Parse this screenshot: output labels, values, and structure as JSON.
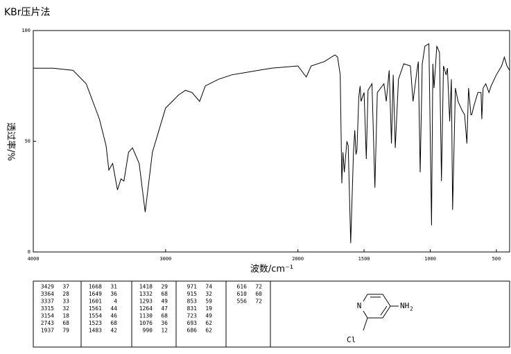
{
  "chart_data": {
    "type": "line",
    "title": "KBr压片法",
    "x_label": "波数/cm⁻¹",
    "y_label": "透过率/%",
    "xlim": [
      4000,
      400
    ],
    "xticks": [
      4000,
      3000,
      2000,
      1500,
      1000,
      500
    ],
    "ylim": [
      0,
      100
    ],
    "yticks": [
      0,
      50,
      100
    ],
    "color": "#000000",
    "x": [
      4000,
      3850,
      3700,
      3600,
      3500,
      3450,
      3429,
      3400,
      3364,
      3337,
      3315,
      3280,
      3250,
      3200,
      3154,
      3100,
      3000,
      2950,
      2900,
      2850,
      2800,
      2743,
      2700,
      2600,
      2500,
      2400,
      2200,
      2000,
      1937,
      1900,
      1800,
      1720,
      1700,
      1680,
      1668,
      1660,
      1649,
      1630,
      1620,
      1601,
      1580,
      1570,
      1561,
      1554,
      1540,
      1530,
      1523,
      1500,
      1483,
      1470,
      1440,
      1418,
      1400,
      1350,
      1332,
      1310,
      1293,
      1280,
      1264,
      1240,
      1200,
      1150,
      1130,
      1100,
      1090,
      1076,
      1060,
      1040,
      1010,
      990,
      980,
      971,
      950,
      930,
      915,
      900,
      880,
      870,
      853,
      840,
      831,
      810,
      790,
      760,
      740,
      723,
      710,
      693,
      686,
      670,
      640,
      616,
      610,
      600,
      580,
      556,
      540,
      500,
      460,
      440,
      420,
      400
    ],
    "values": [
      83,
      83,
      82,
      76,
      60,
      48,
      37,
      40,
      28,
      33,
      32,
      45,
      47,
      40,
      18,
      45,
      65,
      68,
      71,
      73,
      72,
      68,
      75,
      78,
      80,
      81,
      83,
      84,
      79,
      84,
      86,
      89,
      88,
      80,
      31,
      45,
      36,
      50,
      48,
      4,
      45,
      55,
      44,
      46,
      70,
      75,
      68,
      72,
      42,
      73,
      76,
      29,
      72,
      76,
      68,
      82,
      49,
      80,
      47,
      78,
      85,
      84,
      68,
      82,
      86,
      36,
      85,
      93,
      94,
      12,
      85,
      74,
      93,
      90,
      32,
      84,
      80,
      83,
      59,
      78,
      19,
      74,
      68,
      64,
      62,
      49,
      74,
      62,
      62,
      66,
      72,
      72,
      60,
      74,
      76,
      72,
      75,
      80,
      84,
      88,
      84,
      82
    ]
  },
  "peak_table": {
    "columns": [
      [
        [
          3429,
          37
        ],
        [
          3364,
          28
        ],
        [
          3337,
          33
        ],
        [
          3315,
          32
        ],
        [
          3154,
          18
        ],
        [
          2743,
          68
        ],
        [
          1937,
          79
        ]
      ],
      [
        [
          1668,
          31
        ],
        [
          1649,
          36
        ],
        [
          1601,
          4
        ],
        [
          1561,
          44
        ],
        [
          1554,
          46
        ],
        [
          1523,
          68
        ],
        [
          1483,
          42
        ]
      ],
      [
        [
          1418,
          29
        ],
        [
          1332,
          68
        ],
        [
          1293,
          49
        ],
        [
          1264,
          47
        ],
        [
          1130,
          68
        ],
        [
          1076,
          36
        ],
        [
          990,
          12
        ]
      ],
      [
        [
          971,
          74
        ],
        [
          915,
          32
        ],
        [
          853,
          59
        ],
        [
          831,
          19
        ],
        [
          723,
          49
        ],
        [
          693,
          62
        ],
        [
          686,
          62
        ]
      ],
      [
        [
          616,
          72
        ],
        [
          610,
          60
        ],
        [
          556,
          72
        ]
      ]
    ]
  },
  "structure": {
    "ring_n": "N",
    "amine": "NH",
    "amine_sub": "2",
    "halogen": "Cl"
  }
}
